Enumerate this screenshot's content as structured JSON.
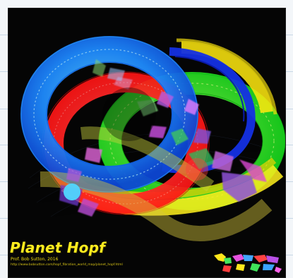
{
  "poster": {
    "title": "Planet Hopf",
    "credit": "Prof. Bob Sutton, 2016",
    "url": "http://www.bobsutton.com/hopf_fibration_world_map/planet_hopf.html"
  },
  "colors": {
    "background": "#050505",
    "blue": "#1f8cff",
    "red": "#ff1f1f",
    "green": "#33ff22",
    "yellow": "#ffef1d",
    "magenta": "#c84fd8",
    "title": "#ffec1e"
  },
  "image": {
    "subject": "Hopf fibration world map artwork",
    "minimap": "world-map-icon"
  }
}
